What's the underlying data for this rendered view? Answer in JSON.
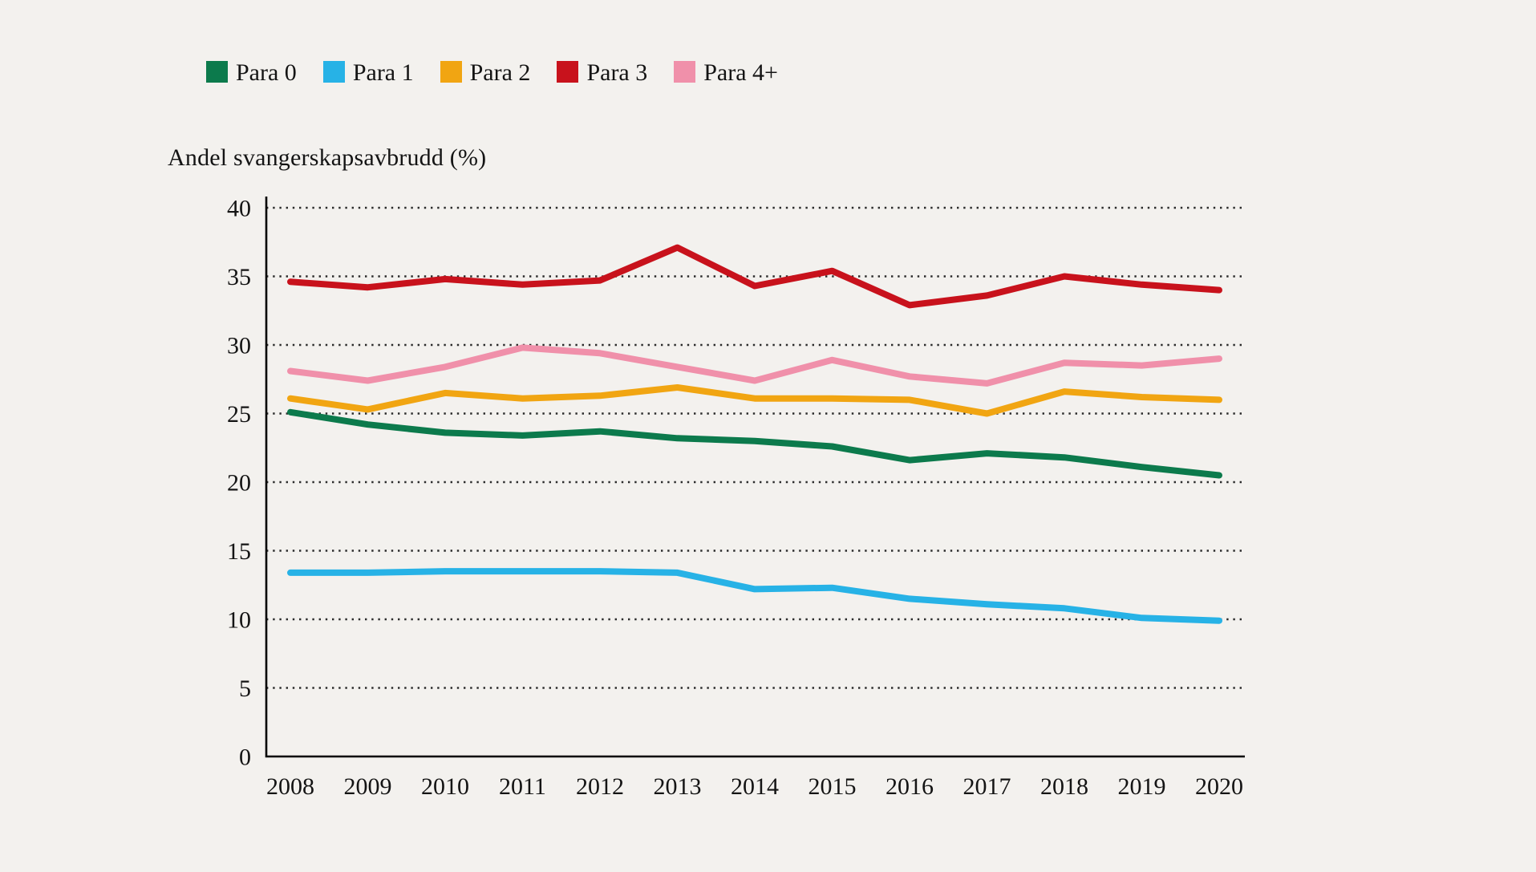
{
  "background_color": "#f3f1ee",
  "text_color": "#141414",
  "axis_color": "#000000",
  "gridline_color": "#2b2b2b",
  "chart_data": {
    "type": "line",
    "title": "Andel svangerskapsavbrudd (%)",
    "xlabel": "",
    "ylabel": "Andel svangerskapsavbrudd (%)",
    "x": [
      "2008",
      "2009",
      "2010",
      "2011",
      "2012",
      "2013",
      "2014",
      "2015",
      "2016",
      "2017",
      "2018",
      "2019",
      "2020"
    ],
    "ylim": [
      0,
      40
    ],
    "ytick_step": 5,
    "ytick_labels": [
      "0",
      "5",
      "10",
      "15",
      "20",
      "25",
      "30",
      "35",
      "40"
    ],
    "grid": "horizontal-dotted",
    "legend_position": "top-left",
    "series": [
      {
        "name": "Para 0",
        "color": "#0c7a4c",
        "values": [
          25.1,
          24.2,
          23.6,
          23.4,
          23.7,
          23.2,
          23.0,
          22.6,
          21.6,
          22.1,
          21.8,
          21.1,
          20.5
        ]
      },
      {
        "name": "Para 1",
        "color": "#27b2e6",
        "values": [
          13.4,
          13.4,
          13.5,
          13.5,
          13.5,
          13.4,
          12.2,
          12.3,
          11.5,
          11.1,
          10.8,
          10.1,
          9.9
        ]
      },
      {
        "name": "Para 2",
        "color": "#f1a512",
        "values": [
          26.1,
          25.3,
          26.5,
          26.1,
          26.3,
          26.9,
          26.1,
          26.1,
          26.0,
          25.0,
          26.6,
          26.2,
          26.0
        ]
      },
      {
        "name": "Para 3",
        "color": "#c8121c",
        "values": [
          34.6,
          34.2,
          34.8,
          34.4,
          34.7,
          37.1,
          34.3,
          35.4,
          32.9,
          33.6,
          35.0,
          34.4,
          34.0
        ]
      },
      {
        "name": "Para 4+",
        "color": "#f090aa",
        "values": [
          28.1,
          27.4,
          28.4,
          29.8,
          29.4,
          28.4,
          27.4,
          28.9,
          27.7,
          27.2,
          28.7,
          28.5,
          29.0
        ]
      }
    ]
  }
}
